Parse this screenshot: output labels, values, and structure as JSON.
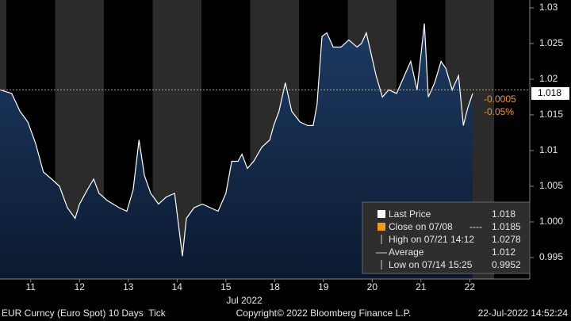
{
  "chart_data": {
    "type": "line",
    "x": [
      -0.13,
      0.11,
      0.28,
      0.44,
      0.6,
      0.76,
      0.93,
      1.09,
      1.25,
      1.41,
      1.5,
      1.66,
      1.79,
      1.9,
      2.07,
      2.31,
      2.47,
      2.6,
      2.72,
      2.83,
      2.96,
      3.12,
      3.28,
      3.45,
      3.61,
      3.69,
      3.85,
      4.02,
      4.18,
      4.34,
      4.5,
      4.62,
      4.75,
      4.83,
      4.94,
      5.07,
      5.24,
      5.4,
      5.48,
      5.59,
      5.72,
      5.85,
      6.02,
      6.18,
      6.29,
      6.37,
      6.47,
      6.57,
      6.7,
      6.86,
      7.02,
      7.19,
      7.28,
      7.38,
      7.48,
      7.58,
      7.71,
      7.84,
      8.0,
      8.16,
      8.29,
      8.42,
      8.57,
      8.65,
      8.78,
      8.91,
      9.01,
      9.14,
      9.27,
      9.37,
      9.46,
      9.56
    ],
    "series": [
      {
        "name": "Last Price",
        "color": "#ffffff",
        "values": [
          1.0185,
          1.018,
          1.0155,
          1.014,
          1.011,
          1.007,
          1.006,
          1.005,
          1.002,
          1.0005,
          1.0025,
          1.0045,
          1.006,
          1.004,
          1.003,
          1.002,
          1.0015,
          1.0045,
          1.0115,
          1.0065,
          1.004,
          1.0025,
          1.0035,
          1.004,
          0.9952,
          1.0005,
          1.002,
          1.0025,
          1.002,
          1.0015,
          1.004,
          1.0085,
          1.0085,
          1.0095,
          1.0075,
          1.0085,
          1.0105,
          1.0115,
          1.0135,
          1.0155,
          1.0195,
          1.0155,
          1.014,
          1.0135,
          1.0135,
          1.0165,
          1.026,
          1.0265,
          1.0245,
          1.0245,
          1.0255,
          1.0245,
          1.025,
          1.0265,
          1.0235,
          1.0205,
          1.0175,
          1.0185,
          1.018,
          1.0205,
          1.0225,
          1.0185,
          1.0278,
          1.0175,
          1.0195,
          1.0225,
          1.0215,
          1.0185,
          1.0205,
          1.0135,
          1.016,
          1.018
        ]
      }
    ],
    "xlim": [
      -0.13,
      10.73
    ],
    "ylim": [
      0.992,
      1.0311
    ],
    "yticks": [
      0.995,
      {
        "value": 1.0,
        "label": "1.000"
      },
      1.005,
      1.01,
      1.015,
      1.02,
      1.025,
      1.03
    ],
    "xticks": [
      {
        "value": 0.5,
        "label": "11"
      },
      {
        "value": 1.5,
        "label": "12"
      },
      {
        "value": 2.5,
        "label": "13"
      },
      {
        "value": 3.5,
        "label": "14"
      },
      {
        "value": 4.5,
        "label": "15"
      },
      {
        "value": 5.5,
        "label": "18"
      },
      {
        "value": 6.5,
        "label": "19"
      },
      {
        "value": 7.5,
        "label": "20"
      },
      {
        "value": 8.5,
        "label": "21"
      },
      {
        "value": 9.5,
        "label": "22"
      }
    ],
    "x_label": "Jul 2022",
    "last_value": 1.018,
    "close_line": {
      "value": 1.0185,
      "color": "#f39c12"
    },
    "annotations": [
      "-0.0005",
      "-0.05%"
    ],
    "legend": {
      "last": {
        "label": "Last Price",
        "value": 1.018
      },
      "close": {
        "label": "Close on 07/08",
        "dash": "----"
      },
      "high": {
        "label": "High on 07/21 14:12",
        "value": 1.0278
      },
      "average": {
        "label": "Average",
        "value": 1.012
      },
      "low": {
        "label": "Low on 07/14 15:25",
        "value": 0.9952
      }
    },
    "footer": {
      "left": "EUR Curncy (Euro Spot) 10 Days  Tick",
      "center": "Copyright© 2022 Bloomberg Finance L.P.",
      "right": "22-Jul-2022 14:52:24"
    }
  }
}
